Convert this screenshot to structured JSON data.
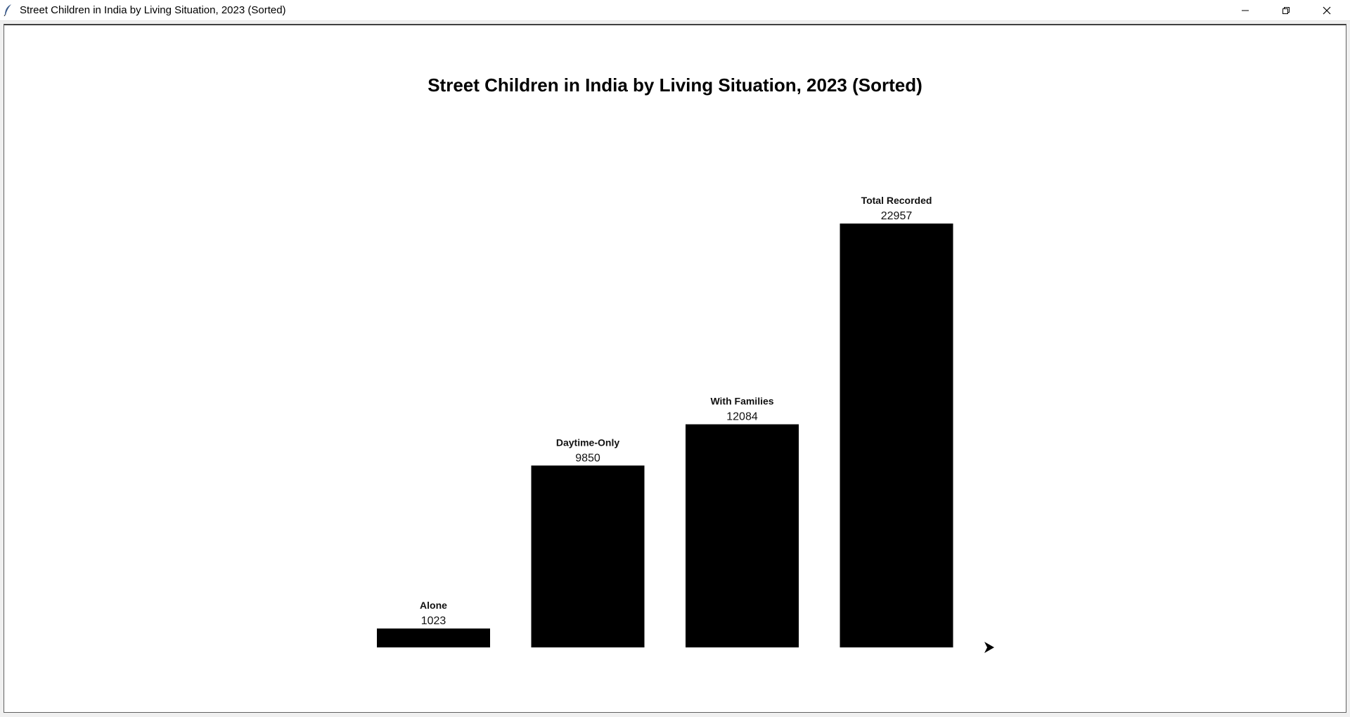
{
  "window": {
    "title": "Street Children in India by Living Situation, 2023 (Sorted)",
    "controls": [
      "minimize-icon",
      "restore-icon",
      "close-icon"
    ],
    "icon": "feather-icon"
  },
  "chart_data": {
    "type": "bar",
    "title": "Street Children in India by Living Situation, 2023 (Sorted)",
    "categories": [
      "Alone",
      "Daytime-Only",
      "With Families",
      "Total Recorded"
    ],
    "values": [
      1023,
      9850,
      12084,
      22957
    ],
    "xlabel": "",
    "ylabel": "",
    "bar_color": "#000000",
    "grid": false,
    "axes_visible": false,
    "marker": "arrow-cursor-icon"
  }
}
